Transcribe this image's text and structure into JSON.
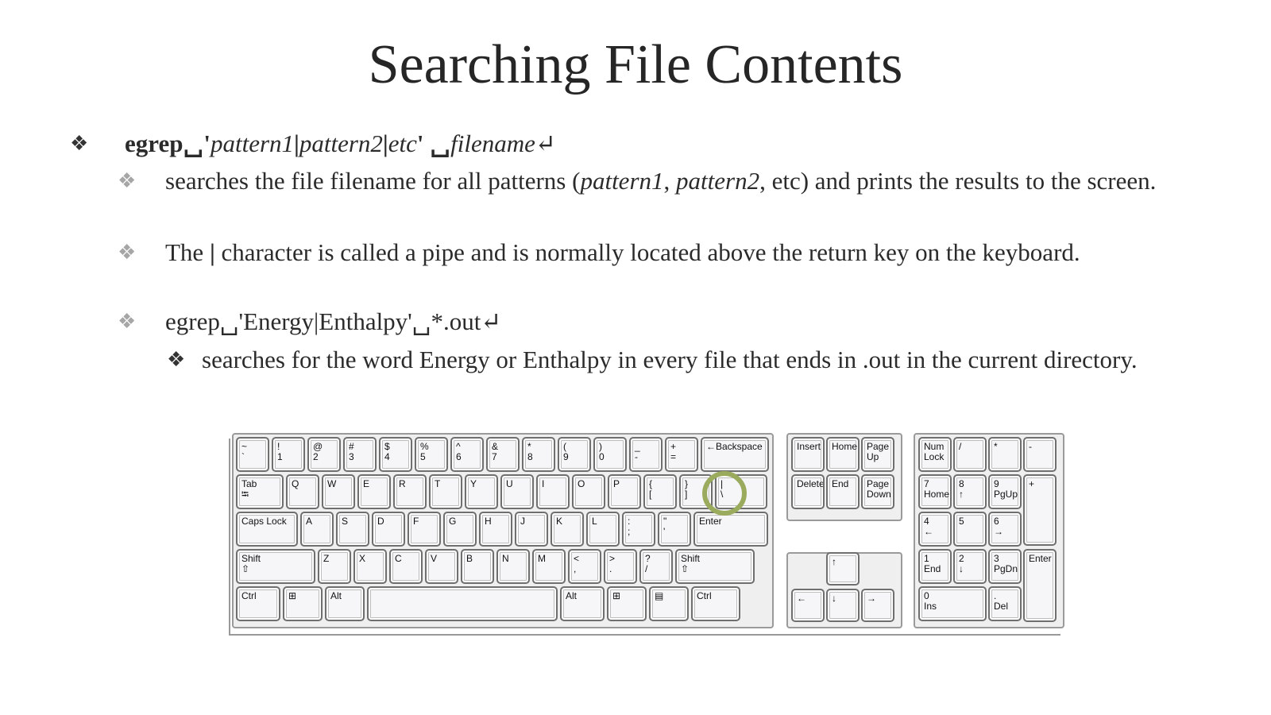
{
  "slide": {
    "title": "Searching File Contents",
    "items": [
      {
        "level": 1,
        "bullet": "❖",
        "runs": [
          {
            "text": "egrep",
            "bold": true
          },
          {
            "text": "␣",
            "bold": true
          },
          {
            "text": "'",
            "bold": true
          },
          {
            "text": "pattern1",
            "italic": true
          },
          {
            "text": "|",
            "bold": true
          },
          {
            "text": "pattern2",
            "italic": true
          },
          {
            "text": "|",
            "bold": true
          },
          {
            "text": "etc",
            "italic": true
          },
          {
            "text": "'",
            "bold": true
          },
          {
            "text": " ␣",
            "bold": true
          },
          {
            "text": "filename",
            "italic": true
          },
          {
            "text": "↵"
          }
        ]
      },
      {
        "level": 2,
        "bullet": "❖",
        "runs": [
          {
            "text": "searches the file filename for all patterns ("
          },
          {
            "text": "pattern1",
            "italic": true
          },
          {
            "text": ", "
          },
          {
            "text": "pattern2",
            "italic": true
          },
          {
            "text": ", etc) and prints the results to the screen."
          }
        ]
      },
      {
        "level": 2,
        "bullet": "❖",
        "runs": [
          {
            "text": "  The "
          },
          {
            "text": "|",
            "bold": true
          },
          {
            "text": " character is called a pipe and is normally located above the return key on the keyboard."
          }
        ]
      },
      {
        "level": 2,
        "bullet": "❖",
        "runs": [
          {
            "text": "egrep␣'Energy|Enthalpy'␣*.out↵"
          }
        ]
      },
      {
        "level": 3,
        "bullet": "❖",
        "runs": [
          {
            "text": "searches for the word Energy or Enthalpy in every file that ends in  .out  in the current directory."
          }
        ]
      }
    ]
  },
  "keyboard": {
    "main_rows": [
      [
        "~\n`",
        "!\n1",
        "@\n2",
        "#\n3",
        "$\n4",
        "%\n5",
        "^\n6",
        "&\n7",
        "*\n8",
        "(\n9",
        ")\n0",
        "_\n-",
        "+\n=",
        "←Backspace"
      ],
      [
        "Tab\n⭾",
        "Q",
        "W",
        "E",
        "R",
        "T",
        "Y",
        "U",
        "I",
        "O",
        "P",
        "{\n[",
        "}\n]",
        "|\n\\"
      ],
      [
        "Caps Lock",
        "A",
        "S",
        "D",
        "F",
        "G",
        "H",
        "J",
        "K",
        "L",
        ":\n;",
        "\"\n'",
        "Enter"
      ],
      [
        "Shift\n⇧",
        "Z",
        "X",
        "C",
        "V",
        "B",
        "N",
        "M",
        "<\n,",
        ">\n.",
        "?\n/",
        "Shift\n⇧"
      ],
      [
        "Ctrl",
        "⊞",
        "Alt",
        "",
        "Alt",
        "⊞",
        "▤",
        "Ctrl"
      ]
    ],
    "nav_keys": [
      "Insert",
      "Home",
      "Page\nUp",
      "Delete",
      "End",
      "Page\nDown"
    ],
    "arrow_keys": [
      "↑",
      "←",
      "↓",
      "→"
    ],
    "numpad_keys": [
      "Num\nLock",
      "/",
      "*",
      "-",
      "7\nHome",
      "8\n↑",
      "9\nPgUp",
      "+",
      "4\n←",
      "5",
      "6\n→",
      "1\nEnd",
      "2\n↓",
      "3\nPgDn",
      "Enter",
      "0\nIns",
      ".\nDel"
    ],
    "highlighted_key": "|\n\\",
    "highlight_color": "#9aab5e"
  }
}
